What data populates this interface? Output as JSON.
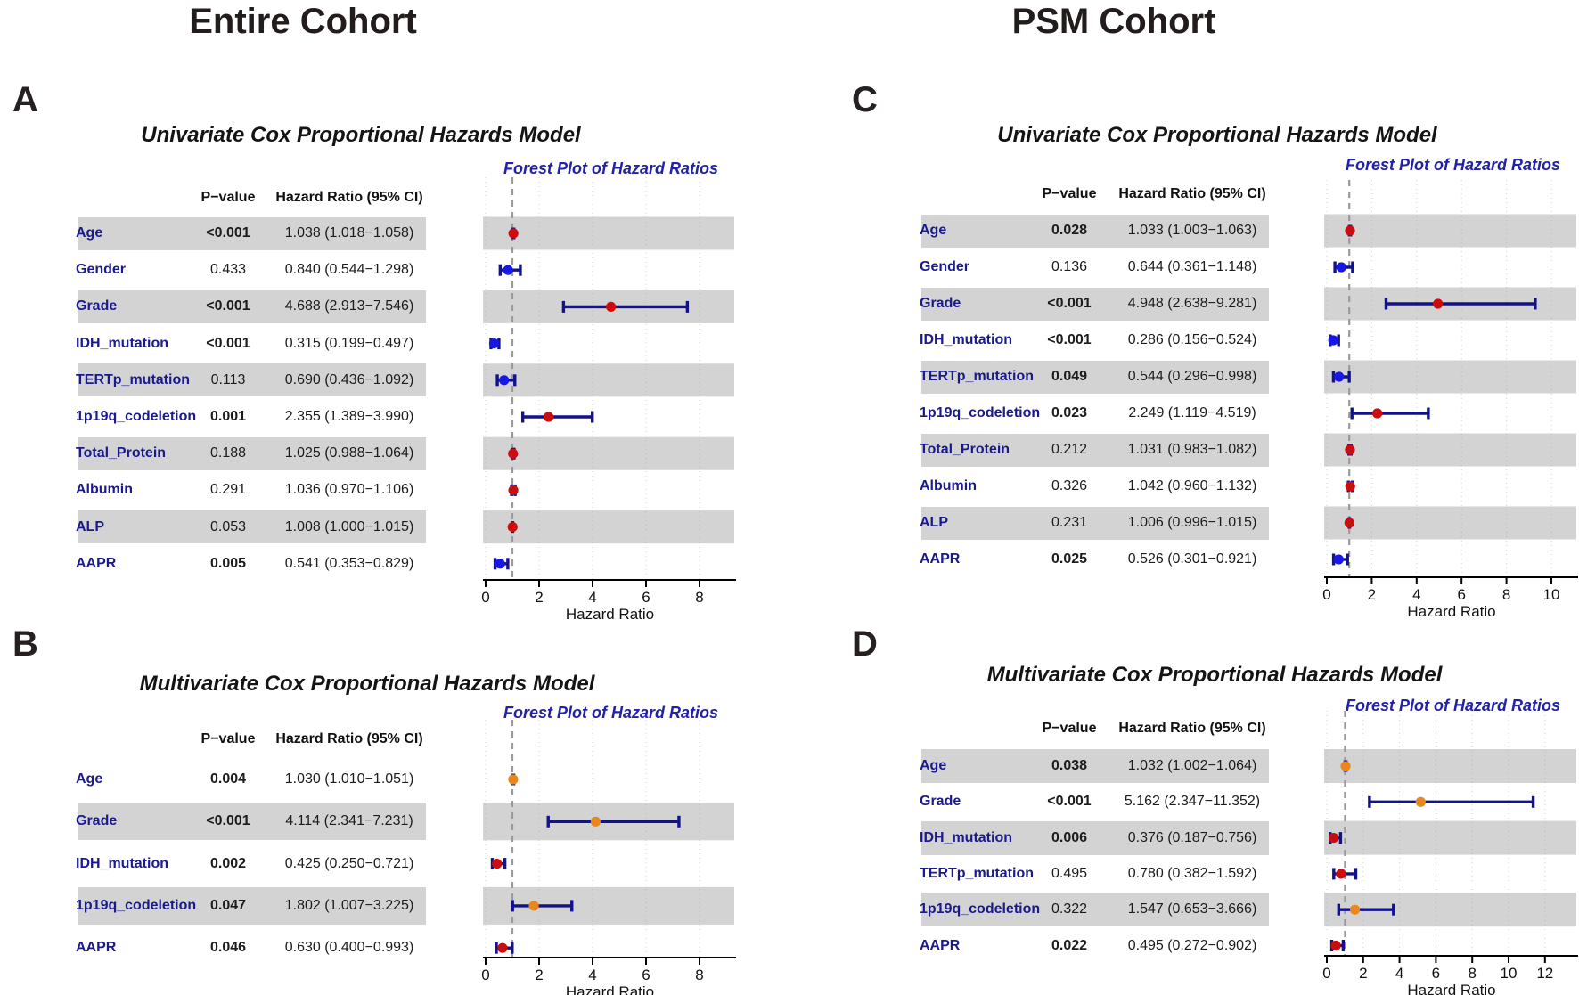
{
  "cohort_headers": {
    "left": "Entire Cohort",
    "right": "PSM Cohort"
  },
  "subtitle": "Forest Plot of Hazard Ratios",
  "axis_label": "Hazard Ratio",
  "table_headers": {
    "p": "P−value",
    "hr": "Hazard Ratio (95% CI)"
  },
  "colors": {
    "marker_red": "#cb0d10",
    "marker_blue": "#1717e8",
    "marker_orange": "#e8871e",
    "ci_line": "#12128a",
    "band_gray": "#d3d3d3",
    "label_navy": "#1a1a8c",
    "subtitle_blue": "#2222a8",
    "reference_dash": "#9a9a9a"
  },
  "chart_data": [
    {
      "panel": "A",
      "cohort": "Entire Cohort",
      "type": "forest",
      "title": "Univariate Cox Proportional Hazards Model",
      "plot_title": "Forest Plot of Hazard Ratios",
      "xlabel": "Hazard Ratio",
      "x_axis": {
        "ticks": [
          0,
          2,
          4,
          6,
          8
        ],
        "max": 9.3,
        "reference_line": 1
      },
      "rows": [
        {
          "variable": "Age",
          "p": "<0.001",
          "p_bold": true,
          "hr_text": "1.038 (1.018−1.058)",
          "hr": 1.038,
          "lo": 1.018,
          "hi": 1.058,
          "marker": "red",
          "shaded": true
        },
        {
          "variable": "Gender",
          "p": "0.433",
          "p_bold": false,
          "hr_text": "0.840 (0.544−1.298)",
          "hr": 0.84,
          "lo": 0.544,
          "hi": 1.298,
          "marker": "blue",
          "shaded": false
        },
        {
          "variable": "Grade",
          "p": "<0.001",
          "p_bold": true,
          "hr_text": "4.688 (2.913−7.546)",
          "hr": 4.688,
          "lo": 2.913,
          "hi": 7.546,
          "marker": "red",
          "shaded": true
        },
        {
          "variable": "IDH_mutation",
          "p": "<0.001",
          "p_bold": true,
          "hr_text": "0.315 (0.199−0.497)",
          "hr": 0.315,
          "lo": 0.199,
          "hi": 0.497,
          "marker": "blue",
          "shaded": false
        },
        {
          "variable": "TERTp_mutation",
          "p": "0.113",
          "p_bold": false,
          "hr_text": "0.690 (0.436−1.092)",
          "hr": 0.69,
          "lo": 0.436,
          "hi": 1.092,
          "marker": "blue",
          "shaded": true
        },
        {
          "variable": "1p19q_codeletion",
          "p": "0.001",
          "p_bold": true,
          "hr_text": "2.355 (1.389−3.990)",
          "hr": 2.355,
          "lo": 1.389,
          "hi": 3.99,
          "marker": "red",
          "shaded": false
        },
        {
          "variable": "Total_Protein",
          "p": "0.188",
          "p_bold": false,
          "hr_text": "1.025 (0.988−1.064)",
          "hr": 1.025,
          "lo": 0.988,
          "hi": 1.064,
          "marker": "red",
          "shaded": true
        },
        {
          "variable": "Albumin",
          "p": "0.291",
          "p_bold": false,
          "hr_text": "1.036 (0.970−1.106)",
          "hr": 1.036,
          "lo": 0.97,
          "hi": 1.106,
          "marker": "red",
          "shaded": false
        },
        {
          "variable": "ALP",
          "p": "0.053",
          "p_bold": false,
          "hr_text": "1.008 (1.000−1.015)",
          "hr": 1.008,
          "lo": 1.0,
          "hi": 1.015,
          "marker": "red",
          "shaded": true
        },
        {
          "variable": "AAPR",
          "p": "0.005",
          "p_bold": true,
          "hr_text": "0.541 (0.353−0.829)",
          "hr": 0.541,
          "lo": 0.353,
          "hi": 0.829,
          "marker": "blue",
          "shaded": false
        }
      ]
    },
    {
      "panel": "B",
      "cohort": "Entire Cohort",
      "type": "forest",
      "title": "Multivariate Cox Proportional Hazards Model",
      "plot_title": "Forest Plot of Hazard Ratios",
      "xlabel": "Hazard Ratio",
      "x_axis": {
        "ticks": [
          0,
          2,
          4,
          6,
          8
        ],
        "max": 9.3,
        "reference_line": 1
      },
      "rows": [
        {
          "variable": "Age",
          "p": "0.004",
          "p_bold": true,
          "hr_text": "1.030 (1.010−1.051)",
          "hr": 1.03,
          "lo": 1.01,
          "hi": 1.051,
          "marker": "orange",
          "shaded": false
        },
        {
          "variable": "Grade",
          "p": "<0.001",
          "p_bold": true,
          "hr_text": "4.114 (2.341−7.231)",
          "hr": 4.114,
          "lo": 2.341,
          "hi": 7.231,
          "marker": "orange",
          "shaded": true
        },
        {
          "variable": "IDH_mutation",
          "p": "0.002",
          "p_bold": true,
          "hr_text": "0.425 (0.250−0.721)",
          "hr": 0.425,
          "lo": 0.25,
          "hi": 0.721,
          "marker": "red",
          "shaded": false
        },
        {
          "variable": "1p19q_codeletion",
          "p": "0.047",
          "p_bold": true,
          "hr_text": "1.802 (1.007−3.225)",
          "hr": 1.802,
          "lo": 1.007,
          "hi": 3.225,
          "marker": "orange",
          "shaded": true
        },
        {
          "variable": "AAPR",
          "p": "0.046",
          "p_bold": true,
          "hr_text": "0.630 (0.400−0.993)",
          "hr": 0.63,
          "lo": 0.4,
          "hi": 0.993,
          "marker": "red",
          "shaded": false
        }
      ]
    },
    {
      "panel": "C",
      "cohort": "PSM Cohort",
      "type": "forest",
      "title": "Univariate Cox Proportional Hazards Model",
      "plot_title": "Forest Plot of Hazard Ratios",
      "xlabel": "Hazard Ratio",
      "x_axis": {
        "ticks": [
          0,
          2,
          4,
          6,
          8,
          10
        ],
        "max": 11.2,
        "reference_line": 1
      },
      "rows": [
        {
          "variable": "Age",
          "p": "0.028",
          "p_bold": true,
          "hr_text": "1.033 (1.003−1.063)",
          "hr": 1.033,
          "lo": 1.003,
          "hi": 1.063,
          "marker": "red",
          "shaded": true
        },
        {
          "variable": "Gender",
          "p": "0.136",
          "p_bold": false,
          "hr_text": "0.644 (0.361−1.148)",
          "hr": 0.644,
          "lo": 0.361,
          "hi": 1.148,
          "marker": "blue",
          "shaded": false
        },
        {
          "variable": "Grade",
          "p": "<0.001",
          "p_bold": true,
          "hr_text": "4.948 (2.638−9.281)",
          "hr": 4.948,
          "lo": 2.638,
          "hi": 9.281,
          "marker": "red",
          "shaded": true
        },
        {
          "variable": "IDH_mutation",
          "p": "<0.001",
          "p_bold": true,
          "hr_text": "0.286 (0.156−0.524)",
          "hr": 0.286,
          "lo": 0.156,
          "hi": 0.524,
          "marker": "blue",
          "shaded": false
        },
        {
          "variable": "TERTp_mutation",
          "p": "0.049",
          "p_bold": true,
          "hr_text": "0.544 (0.296−0.998)",
          "hr": 0.544,
          "lo": 0.296,
          "hi": 0.998,
          "marker": "blue",
          "shaded": true
        },
        {
          "variable": "1p19q_codeletion",
          "p": "0.023",
          "p_bold": true,
          "hr_text": "2.249 (1.119−4.519)",
          "hr": 2.249,
          "lo": 1.119,
          "hi": 4.519,
          "marker": "red",
          "shaded": false
        },
        {
          "variable": "Total_Protein",
          "p": "0.212",
          "p_bold": false,
          "hr_text": "1.031 (0.983−1.082)",
          "hr": 1.031,
          "lo": 0.983,
          "hi": 1.082,
          "marker": "red",
          "shaded": true
        },
        {
          "variable": "Albumin",
          "p": "0.326",
          "p_bold": false,
          "hr_text": "1.042 (0.960−1.132)",
          "hr": 1.042,
          "lo": 0.96,
          "hi": 1.132,
          "marker": "red",
          "shaded": false
        },
        {
          "variable": "ALP",
          "p": "0.231",
          "p_bold": false,
          "hr_text": "1.006 (0.996−1.015)",
          "hr": 1.006,
          "lo": 0.996,
          "hi": 1.015,
          "marker": "red",
          "shaded": true
        },
        {
          "variable": "AAPR",
          "p": "0.025",
          "p_bold": true,
          "hr_text": "0.526 (0.301−0.921)",
          "hr": 0.526,
          "lo": 0.301,
          "hi": 0.921,
          "marker": "blue",
          "shaded": false
        }
      ]
    },
    {
      "panel": "D",
      "cohort": "PSM Cohort",
      "type": "forest",
      "title": "Multivariate Cox Proportional Hazards Model",
      "plot_title": "Forest Plot of Hazard Ratios",
      "xlabel": "Hazard Ratio",
      "x_axis": {
        "ticks": [
          0,
          2,
          4,
          6,
          8,
          10,
          12
        ],
        "max": 13.7,
        "reference_line": 1
      },
      "rows": [
        {
          "variable": "Age",
          "p": "0.038",
          "p_bold": true,
          "hr_text": "1.032 (1.002−1.064)",
          "hr": 1.032,
          "lo": 1.002,
          "hi": 1.064,
          "marker": "orange",
          "shaded": true
        },
        {
          "variable": "Grade",
          "p": "<0.001",
          "p_bold": true,
          "hr_text": "5.162 (2.347−11.352)",
          "hr": 5.162,
          "lo": 2.347,
          "hi": 11.352,
          "marker": "orange",
          "shaded": false
        },
        {
          "variable": "IDH_mutation",
          "p": "0.006",
          "p_bold": true,
          "hr_text": "0.376 (0.187−0.756)",
          "hr": 0.376,
          "lo": 0.187,
          "hi": 0.756,
          "marker": "red",
          "shaded": true
        },
        {
          "variable": "TERTp_mutation",
          "p": "0.495",
          "p_bold": false,
          "hr_text": "0.780 (0.382−1.592)",
          "hr": 0.78,
          "lo": 0.382,
          "hi": 1.592,
          "marker": "red",
          "shaded": false
        },
        {
          "variable": "1p19q_codeletion",
          "p": "0.322",
          "p_bold": false,
          "hr_text": "1.547 (0.653−3.666)",
          "hr": 1.547,
          "lo": 0.653,
          "hi": 3.666,
          "marker": "orange",
          "shaded": true
        },
        {
          "variable": "AAPR",
          "p": "0.022",
          "p_bold": true,
          "hr_text": "0.495 (0.272−0.902)",
          "hr": 0.495,
          "lo": 0.272,
          "hi": 0.902,
          "marker": "red",
          "shaded": false
        }
      ]
    }
  ]
}
